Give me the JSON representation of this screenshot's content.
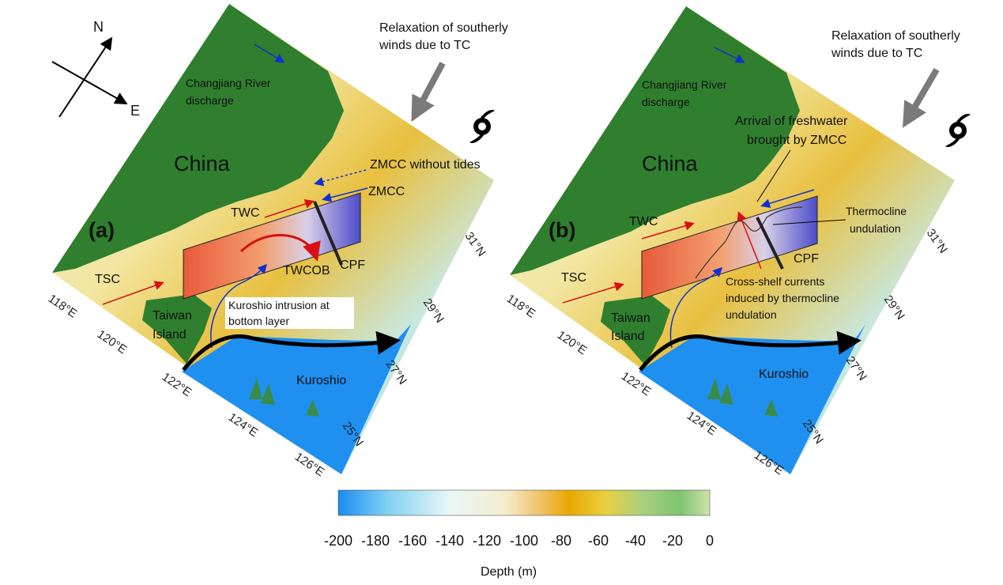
{
  "panels": [
    {
      "id": "a",
      "panel_label": "(a)",
      "country_label": "China",
      "island_label_line1": "Taiwan",
      "island_label_line2": "Island",
      "river_label_line1": "Changjiang River",
      "river_label_line2": "discharge",
      "tc_note_line1": "Relaxation of southerly",
      "tc_note_line2": "winds due to TC",
      "currents": {
        "tsc": "TSC",
        "twc": "TWC",
        "zmcc": "ZMCC",
        "cpf": "CPF",
        "kuroshio": "Kuroshio"
      },
      "extra_notes": [
        "ZMCC without tides",
        "TWCOB"
      ],
      "intrusion_note_line1": "Kuroshio intrusion at",
      "intrusion_note_line2": "bottom layer",
      "lat_ticks": [
        "31°N",
        "29°N",
        "27°N",
        "25°N"
      ],
      "lon_ticks": [
        "118°E",
        "120°E",
        "122°E",
        "124°E",
        "126°E"
      ]
    },
    {
      "id": "b",
      "panel_label": "(b)",
      "country_label": "China",
      "island_label_line1": "Taiwan",
      "island_label_line2": "Island",
      "river_label_line1": "Changjiang River",
      "river_label_line2": "discharge",
      "tc_note_line1": "Relaxation of southerly",
      "tc_note_line2": "winds due to TC",
      "currents": {
        "tsc": "TSC",
        "twc": "TWC",
        "cpf": "CPF",
        "kuroshio": "Kuroshio"
      },
      "arrival_note_line1": "Arrival of freshwater",
      "arrival_note_line2": "brought by ZMCC",
      "undulation_note_line1": "Thermocline",
      "undulation_note_line2": "undulation",
      "cross_note_line1": "Cross-shelf currents",
      "cross_note_line2": "induced by thermocline",
      "cross_note_line3": "undulation",
      "lat_ticks": [
        "31°N",
        "29°N",
        "27°N",
        "25°N"
      ],
      "lon_ticks": [
        "118°E",
        "120°E",
        "122°E",
        "124°E",
        "126°E"
      ]
    }
  ],
  "compass": {
    "north": "N",
    "east": "E"
  },
  "colorbar": {
    "title": "Depth (m)",
    "ticks": [
      "-200",
      "-180",
      "-160",
      "-140",
      "-120",
      "-100",
      "-80",
      "-60",
      "-40",
      "-20",
      "0"
    ],
    "range": [
      -200,
      0
    ],
    "stops": [
      "#1a8cf0",
      "#7fd0f2",
      "#e8f8f6",
      "#f5f0d0",
      "#f0c060",
      "#e8a800",
      "#e8d040",
      "#9fcf80",
      "#7ec470",
      "#c8e0a0"
    ]
  },
  "colors": {
    "land": "#2f7f2f",
    "deep_sea": "#1f90f0",
    "warm_current": "#d81010",
    "cold_current": "#1030d0",
    "tc_arrow": "#7a7a7a",
    "kuroshio_arrow": "#000000"
  }
}
